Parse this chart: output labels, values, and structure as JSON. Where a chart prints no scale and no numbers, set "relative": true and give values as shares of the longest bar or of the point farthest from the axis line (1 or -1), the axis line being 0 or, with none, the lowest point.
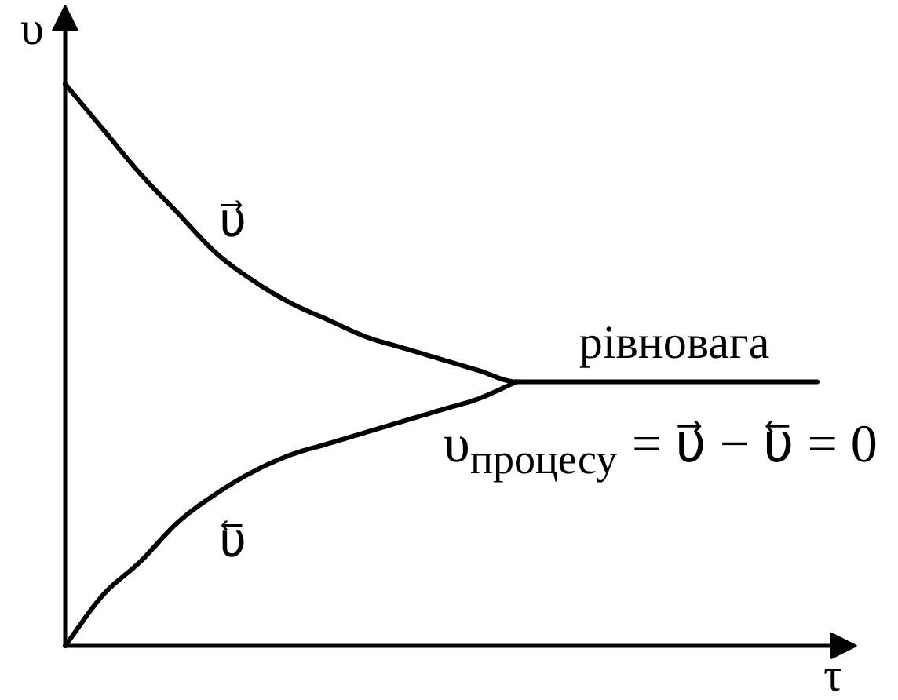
{
  "chart_data": {
    "type": "line",
    "relative": true,
    "xlabel": "τ",
    "ylabel": "υ",
    "categories": [
      null,
      null,
      null,
      null,
      null,
      null,
      null,
      null,
      null,
      null,
      null,
      null,
      null,
      null,
      null,
      null,
      null,
      null,
      null,
      null,
      null
    ],
    "series": [
      {
        "name": "υ⃗",
        "color": "#000000",
        "values": [
          1,
          0.92,
          0.84,
          0.77,
          0.7,
          0.65,
          0.61,
          0.58,
          0.55,
          0.53,
          0.51,
          0.49,
          0.47,
          0.47,
          0.47,
          0.47,
          0.47,
          0.47,
          0.47,
          0.47,
          0.47
        ]
      },
      {
        "name": "υ⃖",
        "color": "#000000",
        "values": [
          0,
          0.09,
          0.15,
          0.22,
          0.27,
          0.31,
          0.34,
          0.36,
          0.38,
          0.4,
          0.42,
          0.44,
          0.47,
          null,
          null,
          null,
          null,
          null,
          null,
          null,
          null
        ]
      }
    ],
    "annotations": [
      "рівновага",
      "υ$_{процесу}$ = υ⃗ − υ⃖ = 0"
    ]
  }
}
